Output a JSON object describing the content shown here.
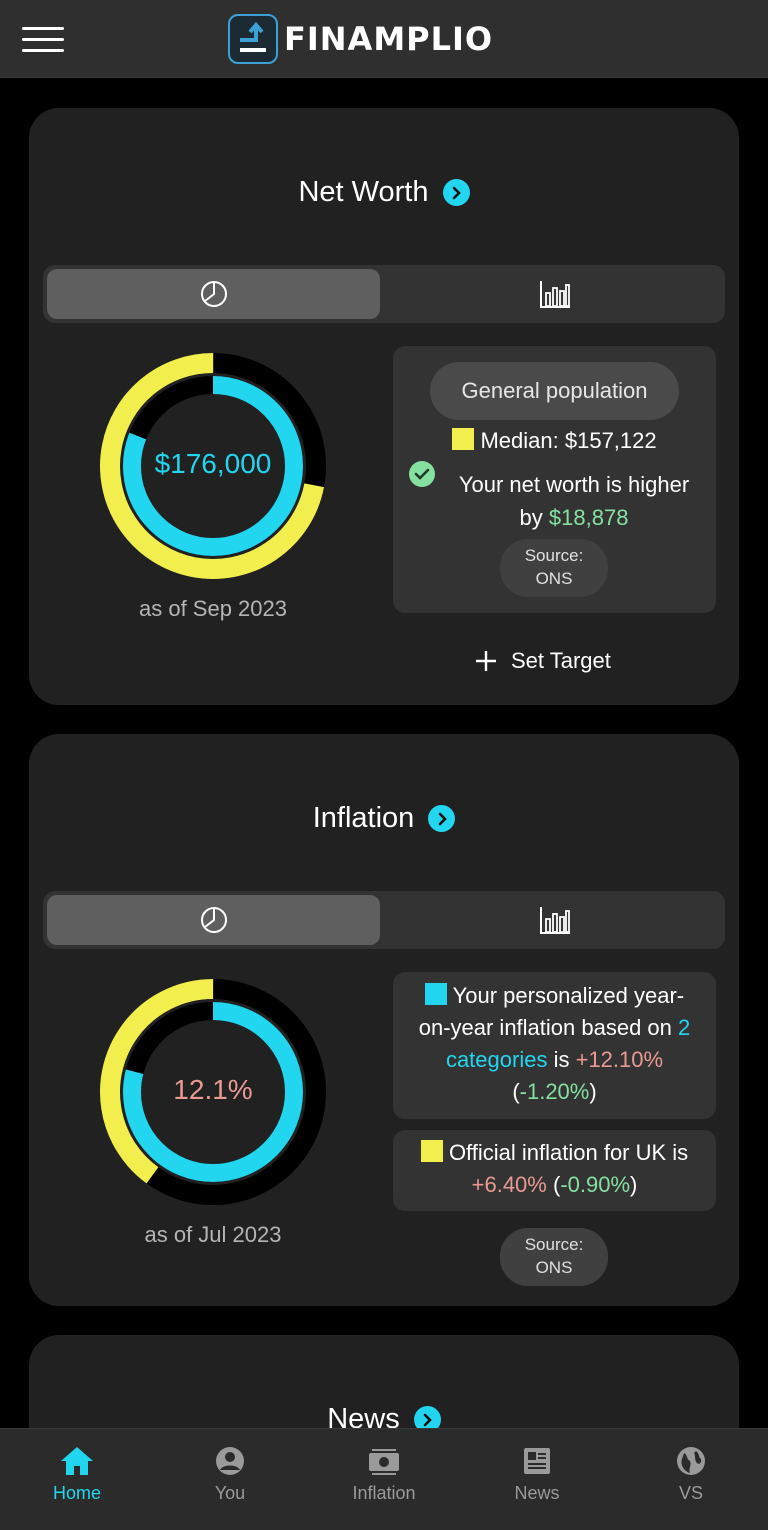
{
  "app": {
    "name": "FINAMPLIO"
  },
  "colors": {
    "accent": "#22d6f0",
    "yellow": "#f2ee4e",
    "positive": "#86e0a0",
    "negative": "#e89a92"
  },
  "net_worth": {
    "title": "Net Worth",
    "value_text": "$176,000",
    "as_of": "as of Sep 2023",
    "user_fraction": 0.81,
    "median_fraction": 0.72,
    "panel": {
      "pill": "General population",
      "median_label": "Median: $157,122",
      "comparison_text": "Your net worth is higher",
      "by_text": "by",
      "diff": "$18,878",
      "source_line1": "Source:",
      "source_line2": "ONS"
    },
    "set_target": "Set Target"
  },
  "inflation": {
    "title": "Inflation",
    "value_text": "12.1%",
    "as_of": "as of Jul 2023",
    "user_fraction": 0.79,
    "official_fraction": 0.4,
    "personal": {
      "text1": "Your personalized year-",
      "text2": "on-year inflation based on",
      "count": "2",
      "categories": "categories",
      "is": "is",
      "rate": "+12.10%",
      "change_open": "(",
      "change": "-1.20%",
      "change_close": ")"
    },
    "official": {
      "text": "Official inflation for UK is",
      "rate": "+6.40%",
      "change_open": "(",
      "change": "-0.90%",
      "change_close": ")"
    },
    "source_line1": "Source:",
    "source_line2": "ONS"
  },
  "news": {
    "title": "News"
  },
  "nav": {
    "items": [
      {
        "label": "Home",
        "icon": "home-icon",
        "active": true
      },
      {
        "label": "You",
        "icon": "user-icon",
        "active": false
      },
      {
        "label": "Inflation",
        "icon": "money-icon",
        "active": false
      },
      {
        "label": "News",
        "icon": "newspaper-icon",
        "active": false
      },
      {
        "label": "VS",
        "icon": "globe-icon",
        "active": false
      }
    ]
  }
}
